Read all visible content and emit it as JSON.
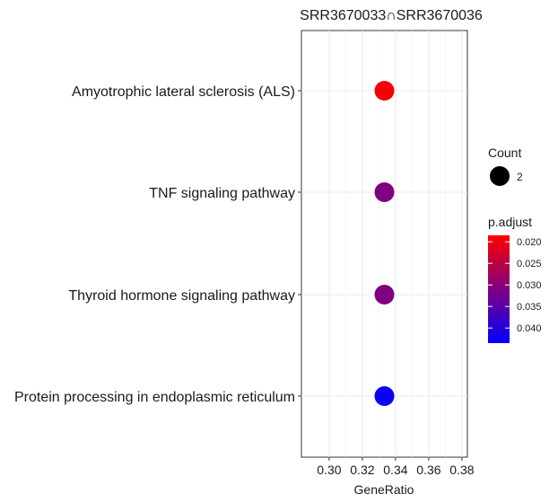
{
  "chart_data": {
    "type": "scatter",
    "title": "SRR3670033∩SRR3670036",
    "xlabel": "GeneRatio",
    "ylabel": "",
    "xlim": [
      0.2833,
      0.3833
    ],
    "xticks": [
      "0.30",
      "0.32",
      "0.34",
      "0.36",
      "0.38"
    ],
    "grid": true,
    "legend_position": "right",
    "categories": [
      "Amyotrophic lateral sclerosis (ALS)",
      "TNF signaling pathway",
      "Thyroid hormone signaling pathway",
      "Protein processing in endoplasmic reticulum"
    ],
    "points": [
      {
        "term": "Amyotrophic lateral sclerosis (ALS)",
        "gene_ratio": 0.3333,
        "count": 2,
        "p_adjust": 0.0195
      },
      {
        "term": "TNF signaling pathway",
        "gene_ratio": 0.3333,
        "count": 2,
        "p_adjust": 0.031
      },
      {
        "term": "Thyroid hormone signaling pathway",
        "gene_ratio": 0.3333,
        "count": 2,
        "p_adjust": 0.031
      },
      {
        "term": "Protein processing in endoplasmic reticulum",
        "gene_ratio": 0.3333,
        "count": 2,
        "p_adjust": 0.0425
      }
    ],
    "legend": {
      "size_title": "Count",
      "size_values": [
        "2"
      ],
      "color_title": "p.adjust",
      "color_ticks": [
        "0.020",
        "0.025",
        "0.030",
        "0.035",
        "0.040"
      ],
      "color_range": [
        0.0185,
        0.0435
      ],
      "color_low": "#ff0000",
      "color_high": "#0000ff"
    }
  }
}
